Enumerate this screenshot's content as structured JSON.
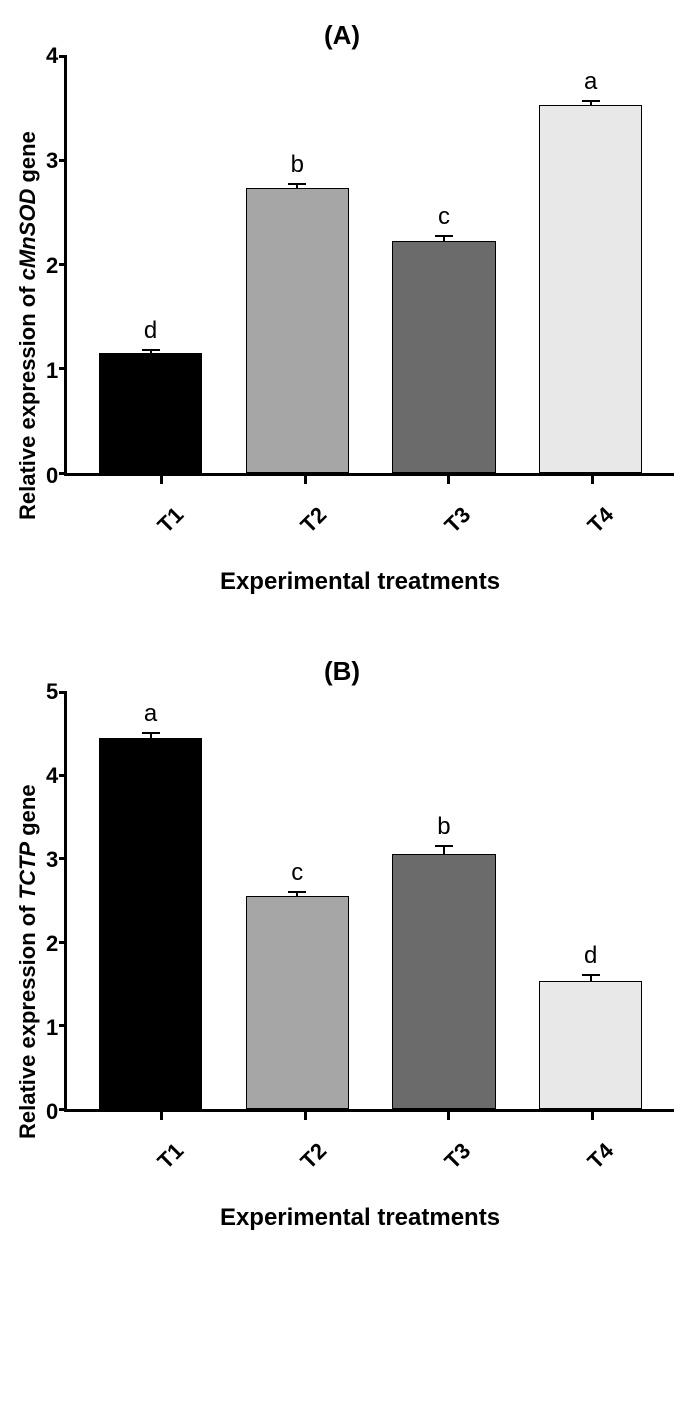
{
  "figure": {
    "background_color": "#ffffff",
    "axis_color": "#000000",
    "axis_line_width": 3,
    "font_family": "Arial",
    "panels": [
      {
        "key": "A",
        "title": "(A)",
        "ylabel_prefix": "Relative expression of ",
        "ylabel_italic": "cMnSOD",
        "ylabel_suffix": " gene",
        "xlabel": "Experimental treatments",
        "type": "bar",
        "ylim": [
          0,
          4
        ],
        "ytick_step": 1,
        "yticks": [
          "0",
          "1",
          "2",
          "3",
          "4"
        ],
        "categories": [
          "T1",
          "T2",
          "T3",
          "T4"
        ],
        "values": [
          1.15,
          2.73,
          2.23,
          3.53
        ],
        "errors": [
          0.04,
          0.05,
          0.05,
          0.05
        ],
        "sig_labels": [
          "d",
          "b",
          "c",
          "a"
        ],
        "bar_colors": [
          "#000000",
          "#a6a6a6",
          "#6b6b6b",
          "#e8e8e8"
        ],
        "bar_border_color": "#000000",
        "bar_width": 0.8,
        "title_fontsize": 26,
        "label_fontsize": 22,
        "tick_fontsize": 22,
        "sig_fontsize": 24
      },
      {
        "key": "B",
        "title": "(B)",
        "ylabel_prefix": "Relative expression of ",
        "ylabel_italic": "TCTP",
        "ylabel_suffix": " gene",
        "xlabel": "Experimental treatments",
        "type": "bar",
        "ylim": [
          0,
          5
        ],
        "ytick_step": 1,
        "yticks": [
          "0",
          "1",
          "2",
          "3",
          "4",
          "5"
        ],
        "categories": [
          "T1",
          "T2",
          "T3",
          "T4"
        ],
        "values": [
          4.45,
          2.55,
          3.06,
          1.53
        ],
        "errors": [
          0.07,
          0.07,
          0.1,
          0.09
        ],
        "sig_labels": [
          "a",
          "c",
          "b",
          "d"
        ],
        "bar_colors": [
          "#000000",
          "#a6a6a6",
          "#6b6b6b",
          "#e8e8e8"
        ],
        "bar_border_color": "#000000",
        "bar_width": 0.8,
        "title_fontsize": 26,
        "label_fontsize": 22,
        "tick_fontsize": 22,
        "sig_fontsize": 24
      }
    ]
  }
}
